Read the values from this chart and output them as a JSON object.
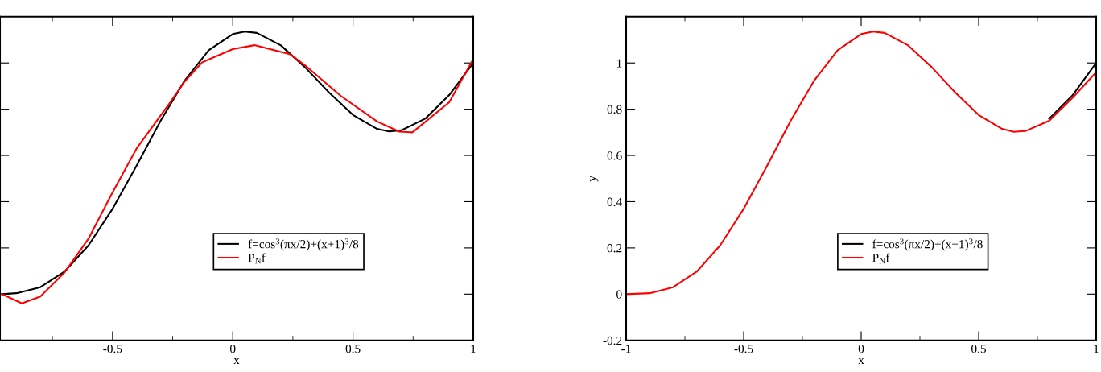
{
  "chart_data": [
    {
      "type": "line",
      "xlabel": "x",
      "xlim": [
        -0.968,
        1
      ],
      "xticks": [
        -0.5,
        0,
        0.5,
        1
      ],
      "ylim": [
        -0.2,
        1.2
      ],
      "yticks": [
        -0.2,
        0,
        0.2,
        0.4,
        0.6,
        0.8,
        1
      ],
      "tick_labels": "x",
      "grid": false,
      "legend": "bottom",
      "line_style": "solid",
      "marker": "none",
      "series": [
        {
          "name": "f=cos$^{3}$(πx/2)+(x+1)$^{3}$/8",
          "color": "#000000",
          "x": [
            -0.96,
            -0.9,
            -0.8,
            -0.7,
            -0.6,
            -0.5,
            -0.4,
            -0.3,
            -0.2,
            -0.1,
            0,
            0.05,
            0.1,
            0.2,
            0.3,
            0.4,
            0.5,
            0.6,
            0.65,
            0.7,
            0.8,
            0.9,
            1
          ],
          "values": [
            0,
            0.004,
            0.03,
            0.097,
            0.211,
            0.369,
            0.556,
            0.75,
            0.924,
            1.055,
            1.125,
            1.136,
            1.13,
            1.076,
            0.982,
            0.873,
            0.775,
            0.715,
            0.704,
            0.708,
            0.759,
            0.861,
            1.0
          ]
        },
        {
          "name": "P$_{N}$f",
          "color": "#ff0000",
          "x": [
            -0.96,
            -0.877,
            -0.8,
            -0.7,
            -0.6,
            -0.5,
            -0.4,
            -0.26,
            -0.2,
            -0.127,
            0,
            0.09,
            0.24,
            0.3,
            0.45,
            0.6,
            0.693,
            0.747,
            0.9,
            1.0
          ],
          "values": [
            0.0,
            -0.04,
            -0.01,
            0.093,
            0.24,
            0.44,
            0.63,
            0.83,
            0.92,
            1.003,
            1.06,
            1.077,
            1.037,
            0.99,
            0.857,
            0.747,
            0.703,
            0.7,
            0.83,
            1.017
          ]
        }
      ]
    },
    {
      "type": "line",
      "xlabel": "x",
      "ylabel": "y",
      "xlim": [
        -1,
        1
      ],
      "xticks": [
        -1,
        -0.5,
        0,
        0.5,
        1
      ],
      "ylim": [
        -0.2,
        1.2
      ],
      "yticks": [
        -0.2,
        0,
        0.2,
        0.4,
        0.6,
        0.8,
        1
      ],
      "grid": false,
      "legend": "bottom",
      "line_style": "solid",
      "marker": "none",
      "series": [
        {
          "name": "f=cos$^{3}$(πx/2)+(x+1)$^{3}$/8",
          "color": "#000000",
          "x": [
            0.8,
            0.9,
            1
          ],
          "values": [
            0.759,
            0.861,
            1.0
          ]
        },
        {
          "name": "P$_{N}$f",
          "color": "#ff0000",
          "x": [
            -1,
            -0.9,
            -0.8,
            -0.7,
            -0.6,
            -0.5,
            -0.4,
            -0.3,
            -0.2,
            -0.1,
            0,
            0.05,
            0.1,
            0.2,
            0.3,
            0.4,
            0.5,
            0.6,
            0.65,
            0.7,
            0.8,
            0.9,
            1
          ],
          "values": [
            0,
            0.004,
            0.03,
            0.097,
            0.211,
            0.369,
            0.556,
            0.75,
            0.924,
            1.055,
            1.125,
            1.136,
            1.13,
            1.076,
            0.982,
            0.873,
            0.775,
            0.715,
            0.702,
            0.706,
            0.75,
            0.85,
            0.96
          ]
        }
      ]
    }
  ]
}
